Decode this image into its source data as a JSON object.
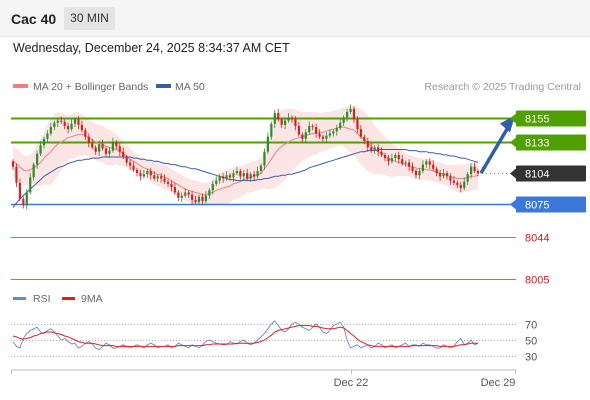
{
  "header": {
    "title": "Cac 40",
    "timeframe_label": "30 MIN"
  },
  "datetime": "Wednesday, December 24, 2025 8:34:37 AM CET",
  "legend": {
    "ma20_label": "MA 20 + Bollinger Bands",
    "ma50_label": "MA 50",
    "copyright": "Research © 2025 Trading Central"
  },
  "colors": {
    "up": "#2e8b2e",
    "down": "#d32222",
    "ma20": "#f08080",
    "ma50": "#3a5ea8",
    "band": "#fbdcdc",
    "resistance": "#4fa000",
    "pivot": "#3c78d8",
    "support": "#e06060",
    "last": "#333333",
    "rsi": "#6688cc",
    "rsi_ma": "#e02020"
  },
  "chart_data": [
    {
      "type": "candlestick",
      "instrument": "Cac 40",
      "timeframe": "30 MIN",
      "y_range": [
        7995,
        8175
      ],
      "levels": [
        {
          "label": "8155",
          "value": 8155,
          "kind": "resistance"
        },
        {
          "label": "8133",
          "value": 8133,
          "kind": "resistance"
        },
        {
          "label": "8104",
          "value": 8104,
          "kind": "last"
        },
        {
          "label": "8075",
          "value": 8075,
          "kind": "pivot"
        },
        {
          "label": "8044",
          "value": 8044,
          "kind": "support"
        },
        {
          "label": "8005",
          "value": 8005,
          "kind": "support"
        }
      ],
      "x_labels": [
        "Dec 22",
        "Dec 29"
      ],
      "close": [
        8110,
        8095,
        8080,
        8074,
        8086,
        8100,
        8112,
        8122,
        8130,
        8136,
        8141,
        8147,
        8151,
        8153,
        8152,
        8148,
        8145,
        8150,
        8154,
        8149,
        8144,
        8138,
        8132,
        8128,
        8124,
        8131,
        8127,
        8122,
        8125,
        8133,
        8129,
        8124,
        8119,
        8114,
        8111,
        8107,
        8104,
        8101,
        8103,
        8106,
        8102,
        8099,
        8101,
        8099,
        8096,
        8094,
        8091,
        8086,
        8081,
        8083,
        8086,
        8084,
        8079,
        8077,
        8082,
        8078,
        8083,
        8088,
        8094,
        8097,
        8101,
        8099,
        8102,
        8100,
        8104,
        8106,
        8101,
        8104,
        8099,
        8103,
        8101,
        8106,
        8111,
        8124,
        8138,
        8150,
        8160,
        8154,
        8149,
        8153,
        8156,
        8154,
        8148,
        8140,
        8136,
        8142,
        8148,
        8147,
        8141,
        8138,
        8136,
        8139,
        8141,
        8143,
        8146,
        8151,
        8156,
        8161,
        8164,
        8154,
        8145,
        8138,
        8134,
        8128,
        8125,
        8128,
        8124,
        8121,
        8118,
        8115,
        8118,
        8121,
        8117,
        8113,
        8114,
        8110,
        8106,
        8102,
        8106,
        8112,
        8115,
        8112,
        8108,
        8104,
        8101,
        8104,
        8101,
        8097,
        8095,
        8093,
        8090,
        8096,
        8103,
        8110,
        8106,
        8104
      ],
      "ma20": [
        8115,
        8113,
        8110,
        8107,
        8106,
        8107,
        8109,
        8111,
        8114,
        8118,
        8121,
        8124,
        8128,
        8131,
        8133,
        8135,
        8137,
        8138,
        8139,
        8140,
        8140,
        8139,
        8137,
        8135,
        8133,
        8132,
        8131,
        8129,
        8128,
        8127,
        8126,
        8124,
        8122,
        8120,
        8117,
        8115,
        8113,
        8111,
        8109,
        8108,
        8106,
        8104,
        8103,
        8102,
        8100,
        8099,
        8097,
        8095,
        8093,
        8091,
        8089,
        8088,
        8087,
        8086,
        8085,
        8084,
        8084,
        8085,
        8086,
        8088,
        8089,
        8090,
        8091,
        8092,
        8094,
        8095,
        8096,
        8098,
        8099,
        8100,
        8101,
        8102,
        8104,
        8108,
        8112,
        8117,
        8122,
        8126,
        8129,
        8131,
        8133,
        8135,
        8136,
        8137,
        8138,
        8139,
        8140,
        8141,
        8141,
        8142,
        8142,
        8143,
        8144,
        8145,
        8146,
        8147,
        8147,
        8146,
        8145,
        8144,
        8141,
        8138,
        8135,
        8132,
        8129,
        8126,
        8124,
        8122,
        8120,
        8118,
        8116,
        8115,
        8114,
        8113,
        8112,
        8111,
        8110,
        8109,
        8108,
        8108,
        8107,
        8107,
        8106,
        8105,
        8104,
        8103,
        8102,
        8101,
        8100,
        8099,
        8099,
        8099,
        8100,
        8101,
        8101,
        8102
      ],
      "upper_band": [
        8130,
        8127,
        8124,
        8121,
        8120,
        8121,
        8124,
        8130,
        8136,
        8143,
        8149,
        8155,
        8159,
        8161,
        8160,
        8159,
        8158,
        8159,
        8160,
        8160,
        8159,
        8157,
        8155,
        8152,
        8150,
        8149,
        8148,
        8146,
        8145,
        8143,
        8140,
        8137,
        8134,
        8131,
        8127,
        8124,
        8121,
        8119,
        8118,
        8117,
        8116,
        8115,
        8114,
        8113,
        8112,
        8110,
        8108,
        8106,
        8104,
        8102,
        8100,
        8099,
        8098,
        8097,
        8096,
        8095,
        8095,
        8096,
        8098,
        8101,
        8104,
        8106,
        8107,
        8108,
        8109,
        8110,
        8111,
        8112,
        8113,
        8114,
        8115,
        8116,
        8119,
        8126,
        8135,
        8145,
        8154,
        8160,
        8163,
        8164,
        8164,
        8164,
        8163,
        8162,
        8161,
        8161,
        8161,
        8161,
        8161,
        8160,
        8160,
        8161,
        8161,
        8162,
        8163,
        8164,
        8165,
        8166,
        8167,
        8167,
        8166,
        8164,
        8161,
        8158,
        8154,
        8149,
        8145,
        8141,
        8138,
        8135,
        8132,
        8129,
        8127,
        8125,
        8123,
        8121,
        8120,
        8119,
        8118,
        8118,
        8117,
        8117,
        8116,
        8115,
        8114,
        8113,
        8112,
        8112,
        8112,
        8112,
        8112,
        8112,
        8113,
        8114,
        8114,
        8115
      ],
      "lower_band": [
        8100,
        8099,
        8096,
        8093,
        8092,
        8093,
        8094,
        8092,
        8092,
        8093,
        8093,
        8093,
        8097,
        8101,
        8106,
        8111,
        8116,
        8117,
        8118,
        8120,
        8121,
        8121,
        8119,
        8118,
        8116,
        8115,
        8114,
        8112,
        8111,
        8111,
        8112,
        8111,
        8110,
        8109,
        8107,
        8106,
        8105,
        8103,
        8100,
        8099,
        8096,
        8093,
        8092,
        8091,
        8088,
        8088,
        8086,
        8084,
        8082,
        8080,
        8078,
        8077,
        8076,
        8075,
        8074,
        8073,
        8073,
        8074,
        8074,
        8075,
        8074,
        8074,
        8075,
        8076,
        8079,
        8080,
        8081,
        8084,
        8085,
        8086,
        8087,
        8088,
        8089,
        8090,
        8089,
        8089,
        8090,
        8092,
        8095,
        8098,
        8102,
        8106,
        8109,
        8112,
        8115,
        8117,
        8119,
        8121,
        8121,
        8124,
        8124,
        8125,
        8127,
        8128,
        8129,
        8130,
        8129,
        8126,
        8123,
        8121,
        8116,
        8112,
        8109,
        8106,
        8104,
        8103,
        8103,
        8103,
        8102,
        8101,
        8100,
        8101,
        8101,
        8101,
        8101,
        8101,
        8100,
        8099,
        8098,
        8098,
        8097,
        8097,
        8096,
        8095,
        8094,
        8093,
        8092,
        8090,
        8088,
        8086,
        8086,
        8086,
        8087,
        8088,
        8088,
        8089
      ],
      "ma50": [
        8072,
        8076,
        8080,
        8083,
        8086,
        8089,
        8092,
        8095,
        8098,
        8101,
        8103,
        8105,
        8107,
        8109,
        8110,
        8111,
        8113,
        8114,
        8115,
        8116,
        8116,
        8117,
        8117,
        8118,
        8118,
        8118,
        8119,
        8119,
        8119,
        8119,
        8119,
        8119,
        8119,
        8119,
        8119,
        8118,
        8118,
        8117,
        8117,
        8116,
        8116,
        8115,
        8115,
        8114,
        8113,
        8113,
        8112,
        8112,
        8111,
        8110,
        8110,
        8109,
        8108,
        8108,
        8107,
        8106,
        8105,
        8104,
        8103,
        8102,
        8101,
        8100,
        8099,
        8098,
        8098,
        8097,
        8097,
        8097,
        8097,
        8097,
        8097,
        8098,
        8098,
        8099,
        8099,
        8100,
        8101,
        8101,
        8102,
        8102,
        8103,
        8103,
        8104,
        8105,
        8106,
        8107,
        8109,
        8110,
        8111,
        8112,
        8113,
        8114,
        8115,
        8116,
        8117,
        8118,
        8119,
        8120,
        8121,
        8122,
        8123,
        8124,
        8124,
        8125,
        8125,
        8125,
        8126,
        8126,
        8126,
        8126,
        8126,
        8126,
        8126,
        8126,
        8126,
        8125,
        8125,
        8125,
        8124,
        8124,
        8124,
        8123,
        8123,
        8122,
        8122,
        8121,
        8121,
        8120,
        8120,
        8119,
        8118,
        8118,
        8117,
        8116,
        8115,
        8114
      ],
      "projection": {
        "from": 8104,
        "to": 8155
      }
    },
    {
      "type": "line",
      "name": "RSI",
      "legend": [
        "RSI",
        "9MA"
      ],
      "y_ticks": [
        "70",
        "50",
        "30"
      ],
      "y_range": [
        20,
        80
      ],
      "rsi": [
        48,
        42,
        40,
        52,
        58,
        62,
        64,
        66,
        60,
        58,
        62,
        64,
        60,
        55,
        50,
        52,
        48,
        45,
        46,
        40,
        42,
        46,
        48,
        45,
        40,
        38,
        42,
        46,
        44,
        40,
        40,
        42,
        44,
        42,
        40,
        42,
        44,
        42,
        40,
        44,
        46,
        44,
        40,
        42,
        42,
        44,
        40,
        42,
        46,
        44,
        42,
        40,
        44,
        42,
        40,
        44,
        48,
        50,
        48,
        46,
        45,
        44,
        44,
        48,
        46,
        45,
        48,
        50,
        46,
        44,
        46,
        50,
        54,
        58,
        64,
        70,
        74,
        68,
        62,
        60,
        64,
        70,
        72,
        70,
        66,
        64,
        62,
        66,
        70,
        66,
        60,
        58,
        62,
        68,
        70,
        72,
        66,
        50,
        40,
        42,
        44,
        40,
        42,
        44,
        40,
        42,
        46,
        44,
        40,
        42,
        44,
        40,
        42,
        44,
        46,
        42,
        44,
        44,
        42,
        46,
        44,
        44,
        42,
        40,
        40,
        44,
        42,
        40,
        42,
        48,
        52,
        44,
        46,
        50,
        44,
        46
      ],
      "rsi_ma": [
        55,
        54,
        52,
        51,
        52,
        53,
        55,
        56,
        58,
        59,
        60,
        60,
        59,
        58,
        57,
        55,
        54,
        52,
        50,
        48,
        47,
        46,
        46,
        46,
        45,
        44,
        43,
        43,
        43,
        43,
        42,
        42,
        42,
        42,
        42,
        42,
        42,
        42,
        42,
        42,
        42,
        42,
        42,
        42,
        42,
        42,
        42,
        42,
        43,
        43,
        43,
        43,
        43,
        43,
        43,
        43,
        44,
        44,
        45,
        45,
        45,
        45,
        45,
        45,
        45,
        46,
        46,
        46,
        46,
        46,
        46,
        47,
        48,
        50,
        53,
        56,
        60,
        62,
        63,
        64,
        65,
        66,
        67,
        68,
        68,
        68,
        68,
        67,
        67,
        66,
        65,
        64,
        64,
        64,
        65,
        66,
        65,
        62,
        58,
        55,
        51,
        48,
        46,
        44,
        43,
        42,
        42,
        42,
        42,
        42,
        42,
        42,
        42,
        42,
        42,
        42,
        43,
        43,
        43,
        43,
        43,
        43,
        43,
        43,
        42,
        42,
        42,
        42,
        42,
        43,
        44,
        44,
        45,
        46,
        46,
        46
      ]
    }
  ]
}
